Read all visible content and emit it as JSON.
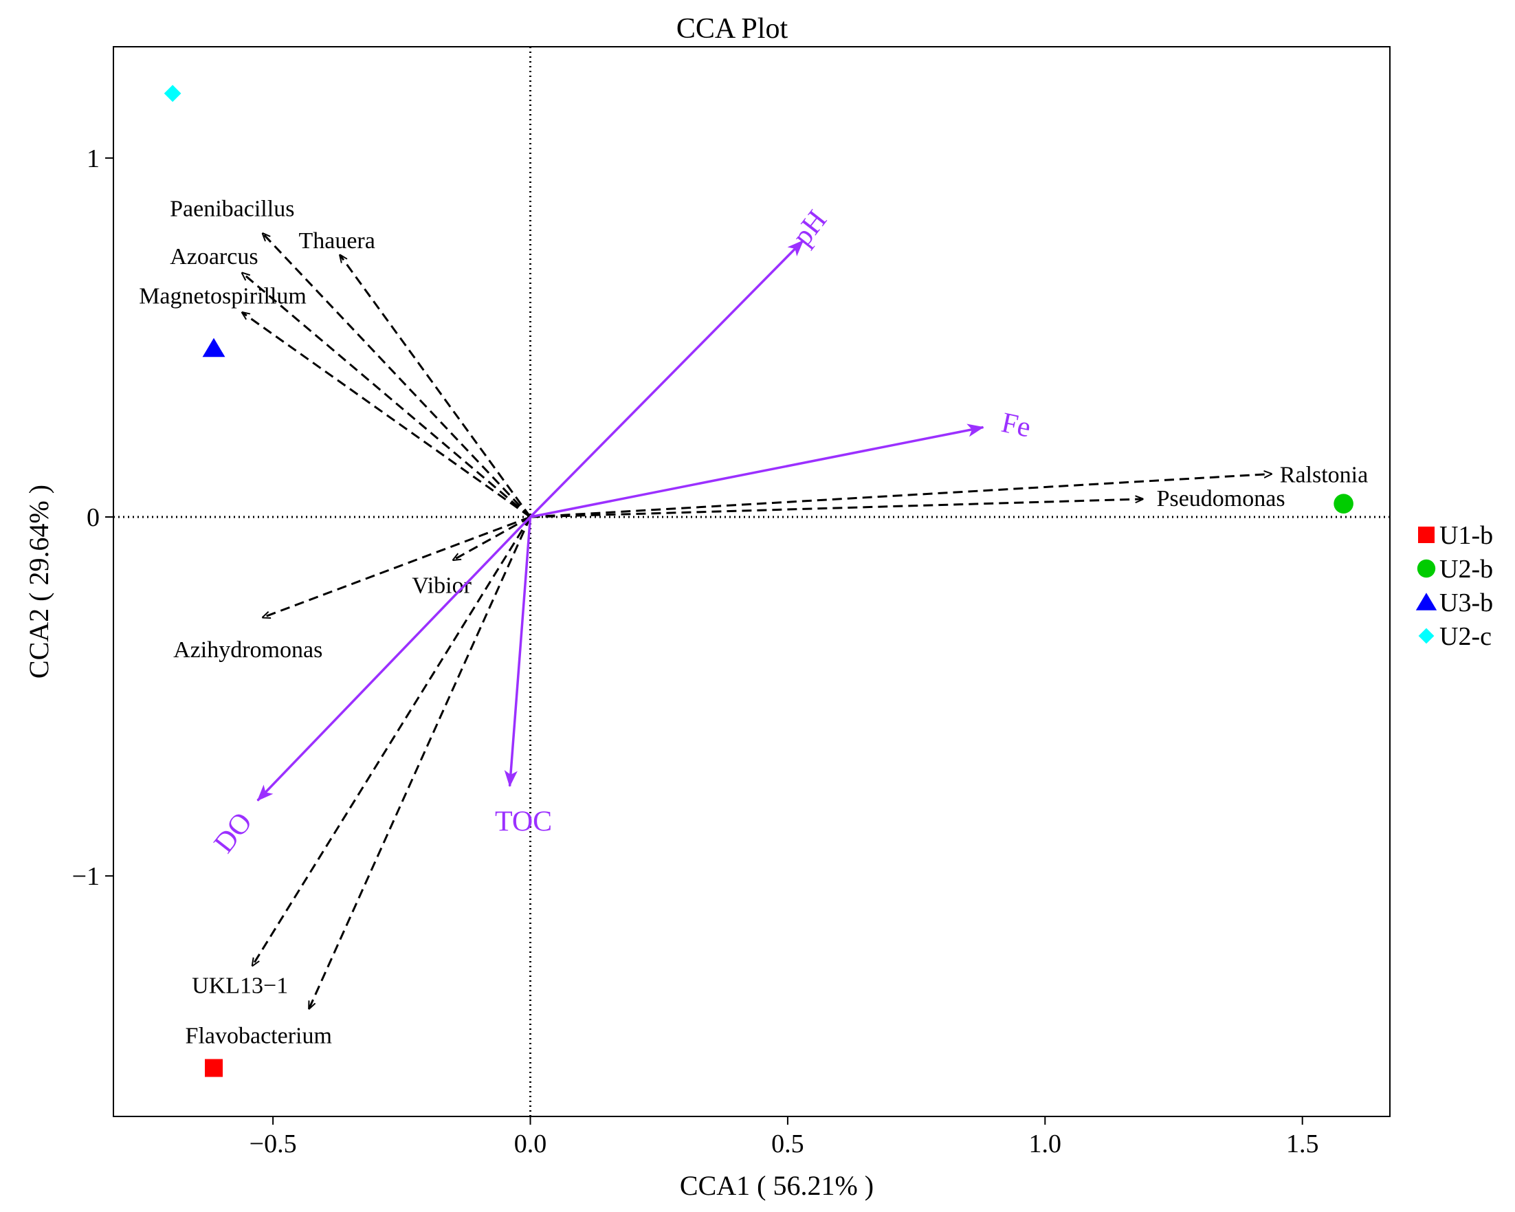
{
  "chart_data": {
    "type": "scatter",
    "title": "CCA Plot",
    "xlabel": "CCA1 ( 56.21% )",
    "ylabel": "CCA2 ( 29.64% )",
    "xlim": [
      -0.81,
      1.67
    ],
    "ylim": [
      -1.67,
      1.31
    ],
    "x_ticks": [
      {
        "value": -0.5,
        "label": "−0.5"
      },
      {
        "value": 0.0,
        "label": "0.0"
      },
      {
        "value": 0.5,
        "label": "0.5"
      },
      {
        "value": 1.0,
        "label": "1.0"
      },
      {
        "value": 1.5,
        "label": "1.5"
      }
    ],
    "y_ticks": [
      {
        "value": -1,
        "label": "−1"
      },
      {
        "value": 0,
        "label": "0"
      },
      {
        "value": 1,
        "label": "1"
      }
    ],
    "grid": false,
    "zero_lines": "dotted",
    "legend_position": "right",
    "samples": [
      {
        "name": "U1-b",
        "x": -0.615,
        "y": -1.535,
        "shape": "square",
        "color": "#ff0000"
      },
      {
        "name": "U2-b",
        "x": 1.58,
        "y": 0.037,
        "shape": "circle",
        "color": "#00cc00"
      },
      {
        "name": "U3-b",
        "x": -0.615,
        "y": 0.47,
        "shape": "triangle",
        "color": "#0000ff"
      },
      {
        "name": "U2-c",
        "x": -0.695,
        "y": 1.18,
        "shape": "diamond",
        "color": "#00ffff"
      }
    ],
    "environmental_vectors": {
      "color": "#9b30ff",
      "items": [
        {
          "name": "pH",
          "x": 0.53,
          "y": 0.77,
          "label_rotation": -52
        },
        {
          "name": "Fe",
          "x": 0.88,
          "y": 0.25,
          "label_rotation": 12
        },
        {
          "name": "DO",
          "x": -0.53,
          "y": -0.79,
          "label_rotation": -52
        },
        {
          "name": "TOC",
          "x": -0.04,
          "y": -0.75,
          "label_rotation": 0
        }
      ]
    },
    "species_vectors": {
      "color": "#000000",
      "items": [
        {
          "name": "Paenibacillus",
          "x": -0.52,
          "y": 0.79
        },
        {
          "name": "Thauera",
          "x": -0.37,
          "y": 0.73
        },
        {
          "name": "Azoarcus",
          "x": -0.56,
          "y": 0.68
        },
        {
          "name": "Magnetospirillum",
          "x": -0.56,
          "y": 0.57
        },
        {
          "name": "Ralstonia",
          "x": 1.44,
          "y": 0.12
        },
        {
          "name": "Pseudomonas",
          "x": 1.19,
          "y": 0.05
        },
        {
          "name": "Vibior",
          "x": -0.15,
          "y": -0.12
        },
        {
          "name": "Azihydromonas",
          "x": -0.52,
          "y": -0.28
        },
        {
          "name": "UKL13−1",
          "x": -0.54,
          "y": -1.25
        },
        {
          "name": "Flavobacterium",
          "x": -0.43,
          "y": -1.37
        }
      ]
    }
  }
}
